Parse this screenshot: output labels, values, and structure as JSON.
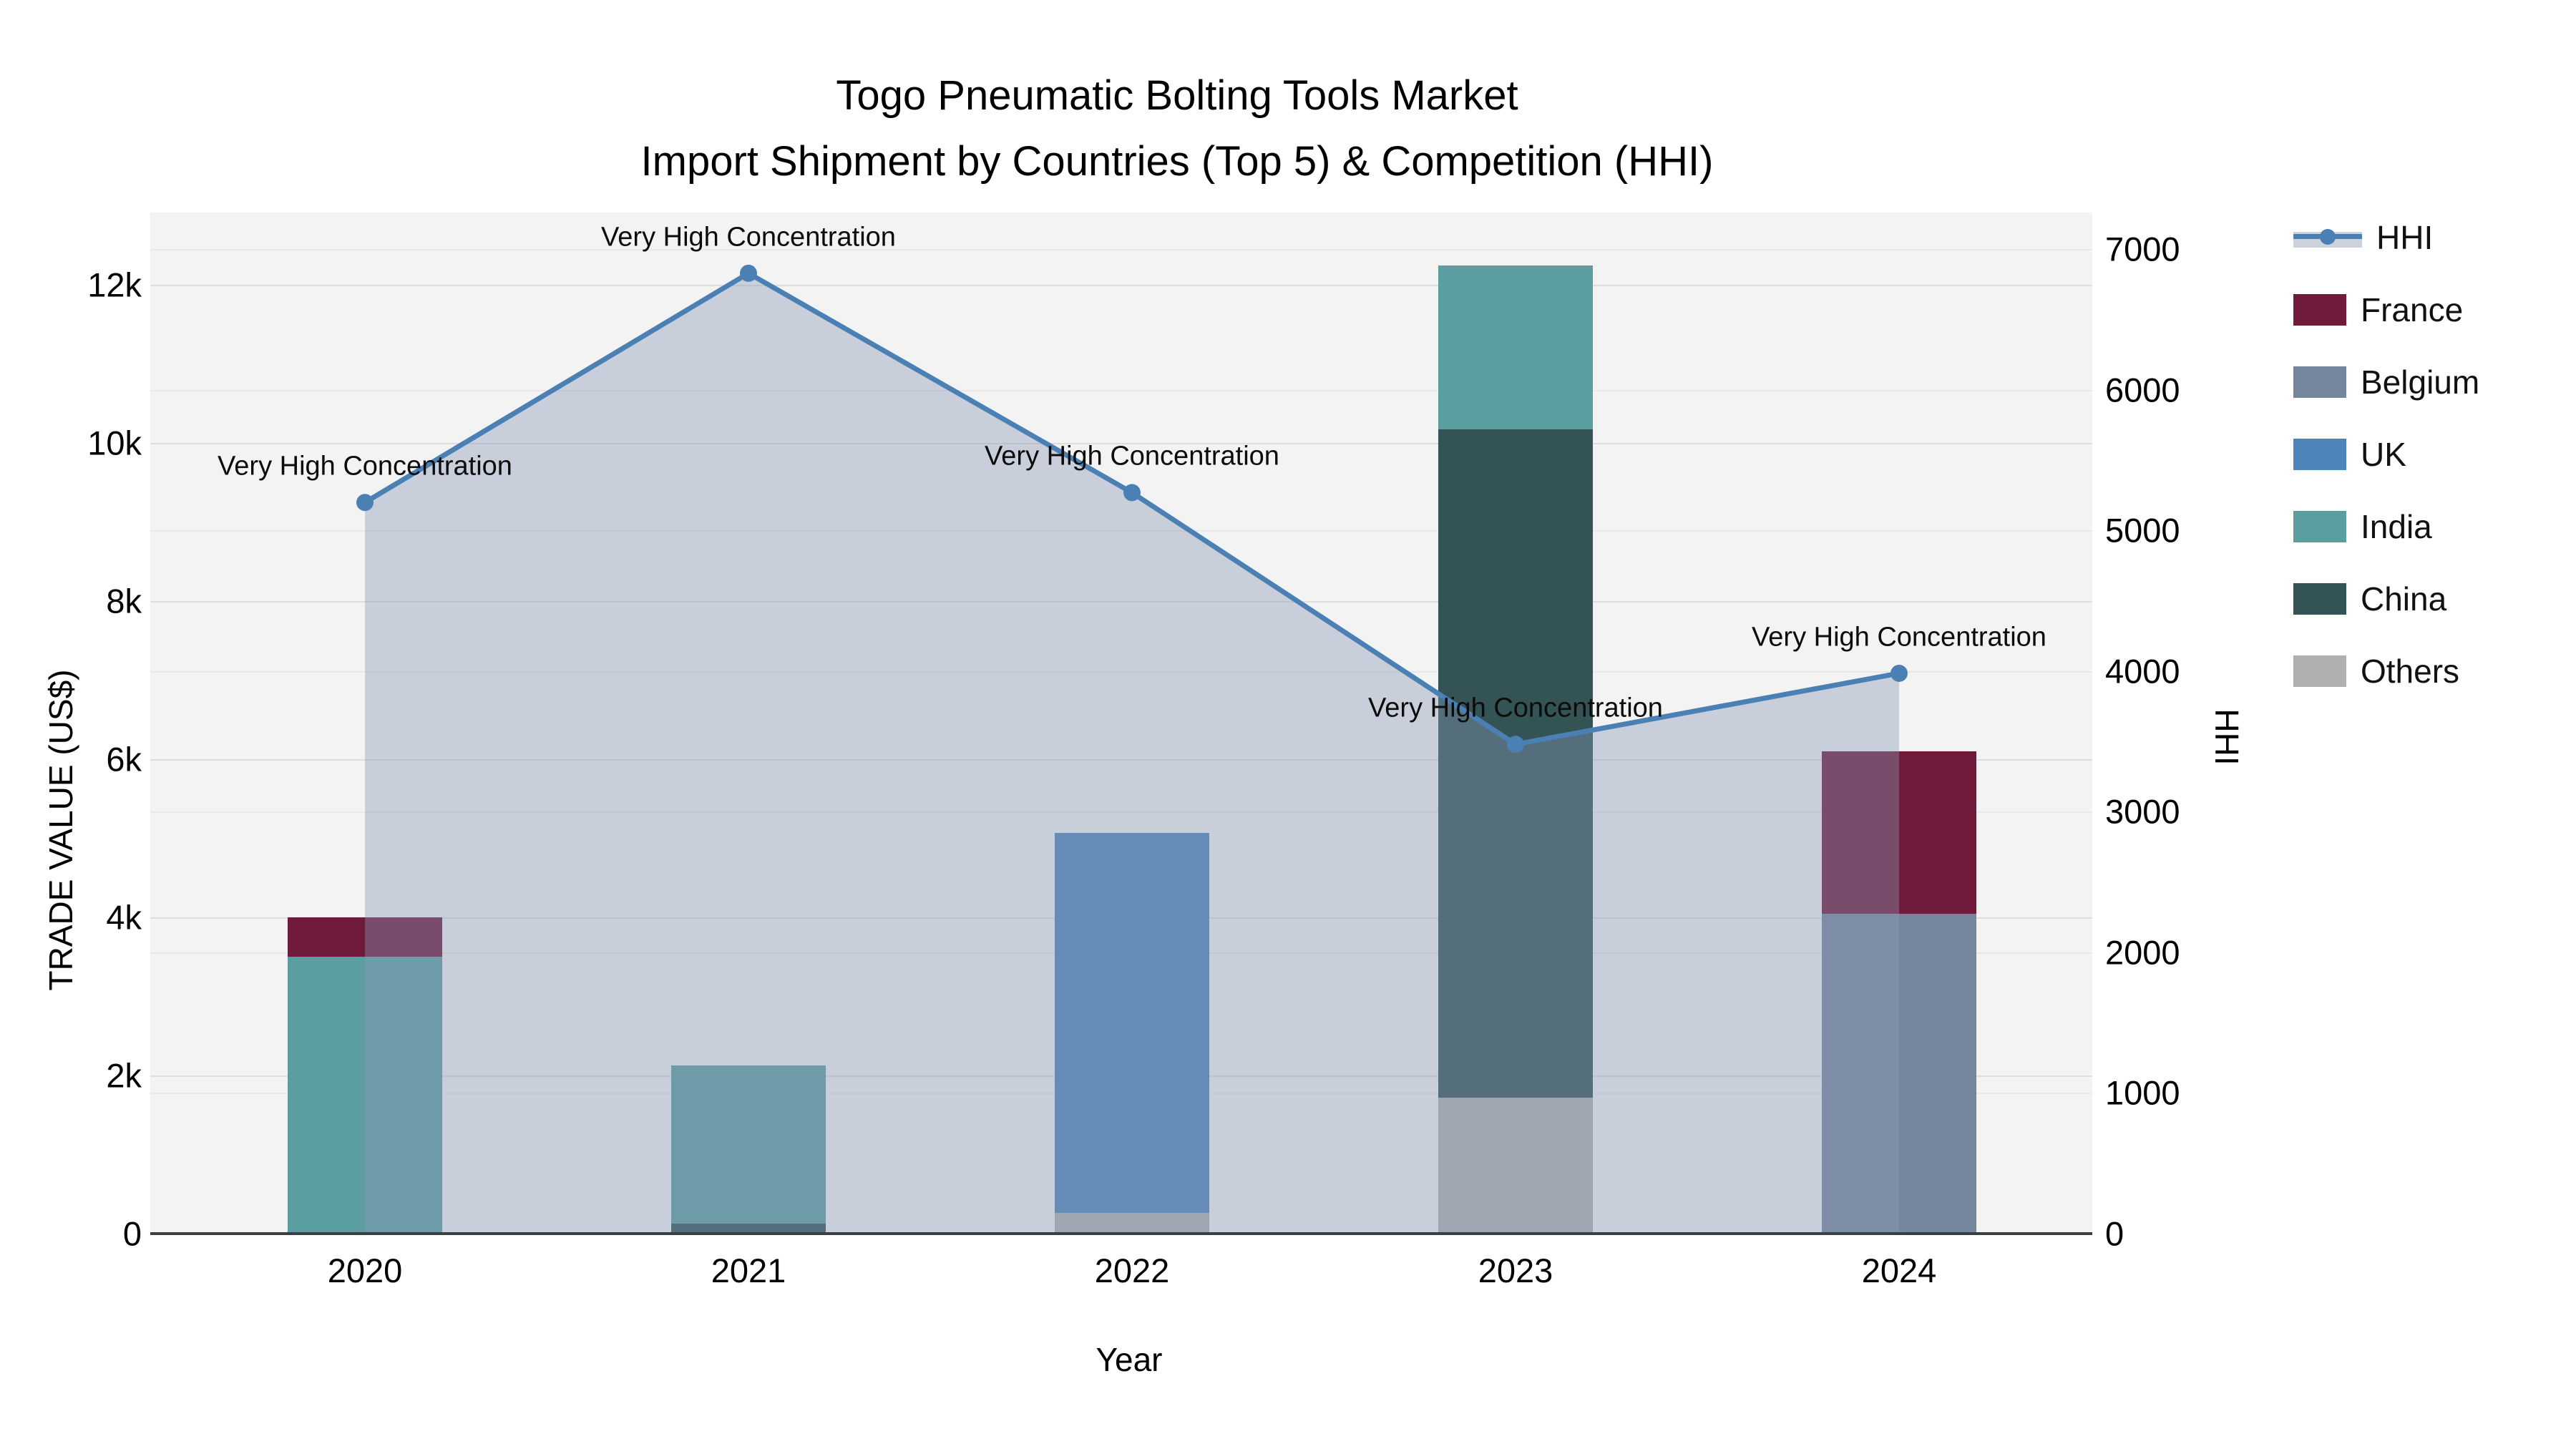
{
  "title": {
    "line1": "Togo Pneumatic Bolting Tools Market",
    "line2": "Import Shipment by Countries (Top 5) & Competition (HHI)"
  },
  "axes": {
    "x_title": "Year",
    "y_left_title": "TRADE VALUE (US$)",
    "y_right_title": "HHI",
    "y_left_tick_labels": [
      "0",
      "2k",
      "4k",
      "6k",
      "8k",
      "10k",
      "12k"
    ],
    "y_left_tick_values": [
      0,
      2000,
      4000,
      6000,
      8000,
      10000,
      12000
    ],
    "y_right_tick_labels": [
      "0",
      "1000",
      "2000",
      "3000",
      "4000",
      "5000",
      "6000",
      "7000"
    ],
    "y_right_tick_values": [
      0,
      1000,
      2000,
      3000,
      4000,
      5000,
      6000,
      7000
    ]
  },
  "colors": {
    "plot_background": "#f3f3f3",
    "axis_line": "#3a3f44",
    "hhi_line": "#4a80b3",
    "hhi_area_fill": "rgba(138,152,181,0.40)",
    "france": "#701a3c",
    "belgium": "#74869c",
    "uk": "#4d84ba",
    "india": "#5b9ea0",
    "china": "#335355",
    "others": "#aeb0b0"
  },
  "chart_data": {
    "type": "bar+line",
    "title": "Togo Pneumatic Bolting Tools Market — Import Shipment by Countries (Top 5) & Competition (HHI)",
    "xlabel": "Year",
    "ylabel_left": "TRADE VALUE (US$)",
    "ylabel_right": "HHI",
    "categories": [
      "2020",
      "2021",
      "2022",
      "2023",
      "2024"
    ],
    "series": [
      {
        "name": "France",
        "color": "#701a3c",
        "values": [
          500,
          0,
          0,
          0,
          2050
        ]
      },
      {
        "name": "Belgium",
        "color": "#74869c",
        "values": [
          0,
          0,
          0,
          0,
          4050
        ]
      },
      {
        "name": "UK",
        "color": "#4d84ba",
        "values": [
          0,
          0,
          4810,
          0,
          0
        ]
      },
      {
        "name": "India",
        "color": "#5b9ea0",
        "values": [
          3500,
          2000,
          0,
          2080,
          0
        ]
      },
      {
        "name": "China",
        "color": "#335355",
        "values": [
          0,
          130,
          0,
          8450,
          0
        ]
      },
      {
        "name": "Others",
        "color": "#aeb0b0",
        "values": [
          0,
          0,
          260,
          1720,
          0
        ]
      }
    ],
    "stack_order_bottom_to_top": [
      "Others",
      "China",
      "India",
      "UK",
      "Belgium",
      "France"
    ],
    "line_series": {
      "name": "HHI",
      "axis": "right",
      "color": "#4a80b3",
      "values": [
        5200,
        6830,
        5270,
        3480,
        3985
      ]
    },
    "annotations": [
      {
        "category": "2020",
        "text": "Very High Concentration"
      },
      {
        "category": "2021",
        "text": "Very High Concentration"
      },
      {
        "category": "2022",
        "text": "Very High Concentration"
      },
      {
        "category": "2023",
        "text": "Very High Concentration"
      },
      {
        "category": "2024",
        "text": "Very High Concentration"
      }
    ],
    "ylim_left": [
      0,
      12915
    ],
    "ylim_right": [
      0,
      7262
    ],
    "grid": true,
    "legend_position": "right",
    "legend_entries": [
      "HHI",
      "France",
      "Belgium",
      "UK",
      "India",
      "China",
      "Others"
    ]
  }
}
